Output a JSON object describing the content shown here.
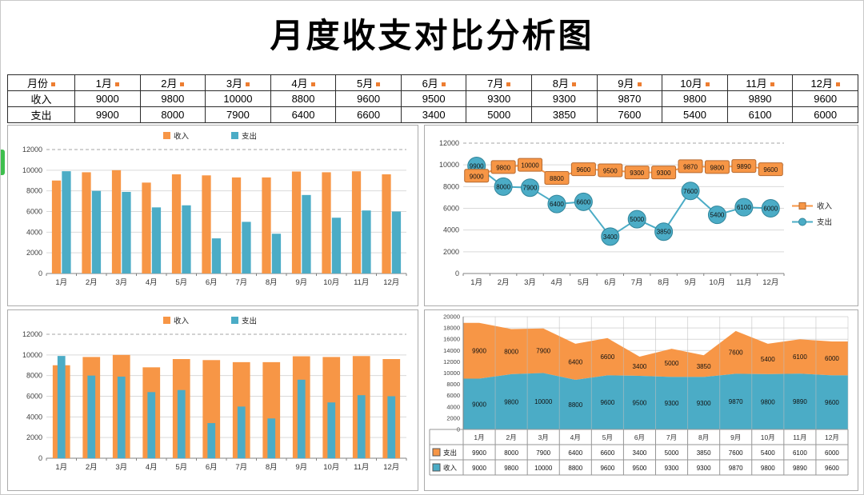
{
  "page_title": "月度收支对比分析图",
  "colors": {
    "income": "#F79646",
    "income_dark": "#B66A30",
    "expense": "#4BACC6",
    "expense_dark": "#31859B",
    "grid": "#D9D9D9",
    "axis": "#808080",
    "table_border": "#2b2b2b",
    "comment_marker": "#ED7D31",
    "sheet_edge_green": "#3FBF4E"
  },
  "table": {
    "rows": [
      {
        "key": "month",
        "label": "月份",
        "values": [
          "1月",
          "2月",
          "3月",
          "4月",
          "5月",
          "6月",
          "7月",
          "8月",
          "9月",
          "10月",
          "11月",
          "12月"
        ]
      },
      {
        "key": "income",
        "label": "收入",
        "values": [
          9000,
          9800,
          10000,
          8800,
          9600,
          9500,
          9300,
          9300,
          9870,
          9800,
          9890,
          9600
        ]
      },
      {
        "key": "expense",
        "label": "支出",
        "values": [
          9900,
          8000,
          7900,
          6400,
          6600,
          3400,
          5000,
          3850,
          7600,
          5400,
          6100,
          6000
        ]
      }
    ]
  },
  "chart_data": [
    {
      "type": "bar",
      "variant": "grouped",
      "title": "",
      "categories": [
        "1月",
        "2月",
        "3月",
        "4月",
        "5月",
        "6月",
        "7月",
        "8月",
        "9月",
        "10月",
        "11月",
        "12月"
      ],
      "series": [
        {
          "name": "收入",
          "color": "#F79646",
          "values": [
            9000,
            9800,
            10000,
            8800,
            9600,
            9500,
            9300,
            9300,
            9870,
            9800,
            9890,
            9600
          ]
        },
        {
          "name": "支出",
          "color": "#4BACC6",
          "values": [
            9900,
            8000,
            7900,
            6400,
            6600,
            3400,
            5000,
            3850,
            7600,
            5400,
            6100,
            6000
          ]
        }
      ],
      "ylim": [
        0,
        12000
      ],
      "ystep": 2000,
      "legend_position": "top",
      "grid": true
    },
    {
      "type": "line",
      "variant": "markers-with-labels",
      "title": "",
      "categories": [
        "1月",
        "2月",
        "3月",
        "4月",
        "5月",
        "6月",
        "7月",
        "8月",
        "9月",
        "10月",
        "11月",
        "12月"
      ],
      "series": [
        {
          "name": "收入",
          "color": "#F79646",
          "marker": "square",
          "values": [
            9000,
            9800,
            10000,
            8800,
            9600,
            9500,
            9300,
            9300,
            9870,
            9800,
            9890,
            9600
          ]
        },
        {
          "name": "支出",
          "color": "#4BACC6",
          "marker": "circle",
          "values": [
            9900,
            8000,
            7900,
            6400,
            6600,
            3400,
            5000,
            3850,
            7600,
            5400,
            6100,
            6000
          ]
        }
      ],
      "ylim": [
        0,
        12000
      ],
      "ystep": 2000,
      "legend_position": "right",
      "data_labels": true,
      "grid": true
    },
    {
      "type": "bar",
      "variant": "overlap",
      "title": "",
      "categories": [
        "1月",
        "2月",
        "3月",
        "4月",
        "5月",
        "6月",
        "7月",
        "8月",
        "9月",
        "10月",
        "11月",
        "12月"
      ],
      "series": [
        {
          "name": "收入",
          "color": "#F79646",
          "values": [
            9000,
            9800,
            10000,
            8800,
            9600,
            9500,
            9300,
            9300,
            9870,
            9800,
            9890,
            9600
          ]
        },
        {
          "name": "支出",
          "color": "#4BACC6",
          "values": [
            9900,
            8000,
            7900,
            6400,
            6600,
            3400,
            5000,
            3850,
            7600,
            5400,
            6100,
            6000
          ]
        }
      ],
      "ylim": [
        0,
        12000
      ],
      "ystep": 2000,
      "legend_position": "top",
      "grid": true
    },
    {
      "type": "area",
      "variant": "stacked",
      "title": "",
      "categories": [
        "1月",
        "2月",
        "3月",
        "4月",
        "5月",
        "6月",
        "7月",
        "8月",
        "9月",
        "10月",
        "11月",
        "12月"
      ],
      "series": [
        {
          "name": "支出",
          "color": "#F79646",
          "values": [
            9900,
            8000,
            7900,
            6400,
            6600,
            3400,
            5000,
            3850,
            7600,
            5400,
            6100,
            6000
          ]
        },
        {
          "name": "收入",
          "color": "#4BACC6",
          "values": [
            9000,
            9800,
            10000,
            8800,
            9600,
            9500,
            9300,
            9300,
            9870,
            9800,
            9890,
            9600
          ]
        }
      ],
      "ylim": [
        0,
        20000
      ],
      "ystep": 2000,
      "legend_position": "table-left",
      "data_labels": true,
      "data_table": true,
      "grid": true
    }
  ]
}
